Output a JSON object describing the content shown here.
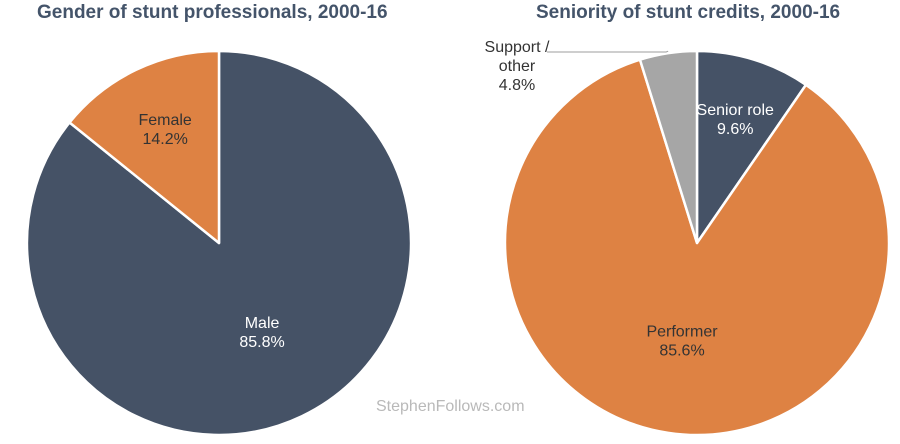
{
  "chart_data": [
    {
      "type": "pie",
      "title": "Gender of stunt professionals, 2000-16",
      "slices": [
        {
          "label": "Male",
          "value": 85.8,
          "value_label": "85.8%",
          "color": "#455266"
        },
        {
          "label": "Female",
          "value": 14.2,
          "value_label": "14.2%",
          "color": "#de8243"
        }
      ]
    },
    {
      "type": "pie",
      "title": "Seniority of stunt credits, 2000-16",
      "slices": [
        {
          "label": "Senior role",
          "value": 9.6,
          "value_label": "9.6%",
          "color": "#455266"
        },
        {
          "label": "Performer",
          "value": 85.6,
          "value_label": "85.6%",
          "color": "#de8243"
        },
        {
          "label": "Support / other",
          "label_lines": [
            "Support /",
            "other"
          ],
          "value": 4.8,
          "value_label": "4.8%",
          "color": "#a6a6a6"
        }
      ]
    }
  ],
  "watermark": "StephenFollows.com",
  "colors": {
    "slate": "#455266",
    "orange": "#de8243",
    "grey": "#a6a6a6",
    "title": "#44546a"
  }
}
